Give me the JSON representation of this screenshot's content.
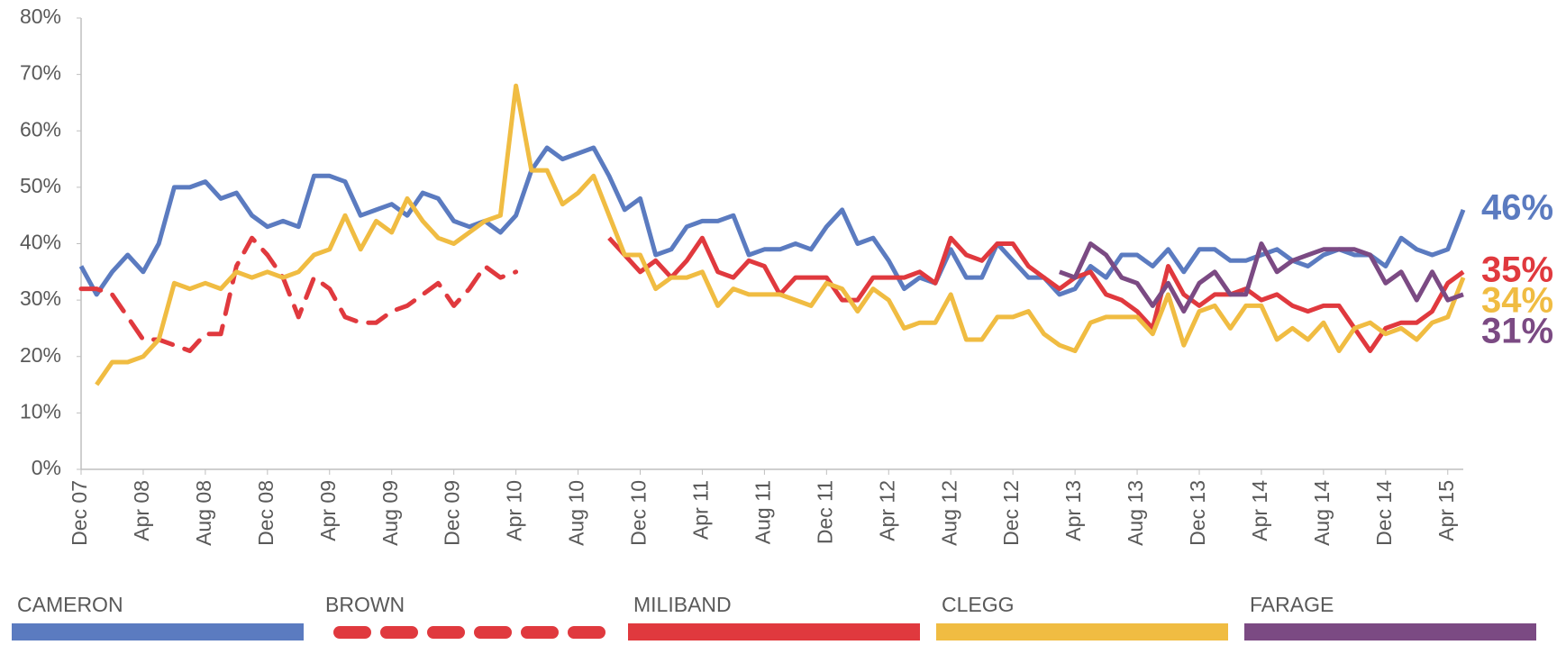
{
  "chart_data": {
    "type": "line",
    "categories": [
      "Dec 07",
      null,
      null,
      null,
      "Apr 08",
      null,
      null,
      null,
      "Aug 08",
      null,
      null,
      null,
      "Dec 08",
      null,
      null,
      null,
      "Apr 09",
      null,
      null,
      null,
      "Aug 09",
      null,
      null,
      null,
      "Dec 09",
      null,
      null,
      null,
      "Apr 10",
      null,
      null,
      null,
      "Aug 10",
      null,
      null,
      null,
      "Dec 10",
      null,
      null,
      null,
      "Apr 11",
      null,
      null,
      null,
      "Aug 11",
      null,
      null,
      null,
      "Dec 11",
      null,
      null,
      null,
      "Apr 12",
      null,
      null,
      null,
      "Aug 12",
      null,
      null,
      null,
      "Dec 12",
      null,
      null,
      null,
      "Apr 13",
      null,
      null,
      null,
      "Aug 13",
      null,
      null,
      null,
      "Dec 13",
      null,
      null,
      null,
      "Apr 14",
      null,
      null,
      null,
      "Aug 14",
      null,
      null,
      null,
      "Dec 14",
      null,
      null,
      null,
      "Apr 15",
      null
    ],
    "ylim": [
      0,
      80
    ],
    "yticks": [
      {
        "value": 0,
        "label": "0%"
      },
      {
        "value": 10,
        "label": "10%"
      },
      {
        "value": 20,
        "label": "20%"
      },
      {
        "value": 30,
        "label": "30%"
      },
      {
        "value": 40,
        "label": "40%"
      },
      {
        "value": 50,
        "label": "50%"
      },
      {
        "value": 60,
        "label": "60%"
      },
      {
        "value": 70,
        "label": "70%"
      },
      {
        "value": 80,
        "label": "80%"
      }
    ],
    "grid": false,
    "legend": "bottom",
    "series": [
      {
        "name": "CAMERON",
        "color": "#5b7bc0",
        "dashed": false,
        "end_label": "46%",
        "values": [
          36,
          31,
          35,
          38,
          35,
          40,
          50,
          50,
          51,
          48,
          49,
          45,
          43,
          44,
          43,
          52,
          52,
          51,
          45,
          46,
          47,
          45,
          49,
          48,
          44,
          43,
          44,
          42,
          45,
          53,
          57,
          55,
          56,
          57,
          52,
          46,
          48,
          38,
          39,
          43,
          44,
          44,
          45,
          38,
          39,
          39,
          40,
          39,
          43,
          46,
          40,
          41,
          37,
          32,
          34,
          33,
          39,
          34,
          34,
          40,
          37,
          34,
          34,
          31,
          32,
          36,
          34,
          38,
          38,
          36,
          39,
          35,
          39,
          39,
          37,
          37,
          38,
          39,
          37,
          36,
          38,
          39,
          38,
          38,
          36,
          41,
          39,
          38,
          39,
          46
        ]
      },
      {
        "name": "BROWN",
        "color": "#e0393e",
        "dashed": true,
        "values": [
          32,
          32,
          31,
          27,
          23,
          23,
          22,
          21,
          24,
          24,
          36,
          41,
          38,
          34,
          27,
          34,
          32,
          27,
          26,
          26,
          28,
          29,
          31,
          33,
          29,
          32,
          36,
          34,
          35,
          null,
          null,
          null,
          null,
          null,
          null,
          null,
          null,
          null,
          null,
          null,
          null,
          null,
          null,
          null,
          null,
          null,
          null,
          null,
          null,
          null,
          null,
          null,
          null,
          null,
          null,
          null,
          null,
          null,
          null,
          null,
          null,
          null,
          null,
          null,
          null,
          null,
          null,
          null,
          null,
          null,
          null,
          null,
          null,
          null,
          null,
          null,
          null,
          null,
          null,
          null,
          null,
          null,
          null,
          null,
          null,
          null,
          null,
          null,
          null,
          null
        ]
      },
      {
        "name": "MILIBAND",
        "color": "#e0393e",
        "dashed": false,
        "end_label": "35%",
        "values": [
          null,
          null,
          null,
          null,
          null,
          null,
          null,
          null,
          null,
          null,
          null,
          null,
          null,
          null,
          null,
          null,
          null,
          null,
          null,
          null,
          null,
          null,
          null,
          null,
          null,
          null,
          null,
          null,
          null,
          null,
          null,
          null,
          null,
          null,
          41,
          38,
          35,
          37,
          34,
          37,
          41,
          35,
          34,
          37,
          36,
          31,
          34,
          34,
          34,
          30,
          30,
          34,
          34,
          34,
          35,
          33,
          41,
          38,
          37,
          40,
          40,
          36,
          34,
          32,
          34,
          35,
          31,
          30,
          28,
          25,
          36,
          31,
          29,
          31,
          31,
          32,
          30,
          31,
          29,
          28,
          29,
          29,
          25,
          21,
          25,
          26,
          26,
          28,
          33,
          35
        ]
      },
      {
        "name": "CLEGG",
        "color": "#f0bc42",
        "dashed": false,
        "end_label": "34%",
        "values": [
          null,
          15,
          19,
          19,
          20,
          23,
          33,
          32,
          33,
          32,
          35,
          34,
          35,
          34,
          35,
          38,
          39,
          45,
          39,
          44,
          42,
          48,
          44,
          41,
          40,
          42,
          44,
          45,
          68,
          53,
          53,
          47,
          49,
          52,
          45,
          38,
          38,
          32,
          34,
          34,
          35,
          29,
          32,
          31,
          31,
          31,
          30,
          29,
          33,
          32,
          28,
          32,
          30,
          25,
          26,
          26,
          31,
          23,
          23,
          27,
          27,
          28,
          24,
          22,
          21,
          26,
          27,
          27,
          27,
          24,
          31,
          22,
          28,
          29,
          25,
          29,
          29,
          23,
          25,
          23,
          26,
          21,
          25,
          26,
          24,
          25,
          23,
          26,
          27,
          34
        ]
      },
      {
        "name": "FARAGE",
        "color": "#7b4a83",
        "dashed": false,
        "end_label": "31%",
        "values": [
          null,
          null,
          null,
          null,
          null,
          null,
          null,
          null,
          null,
          null,
          null,
          null,
          null,
          null,
          null,
          null,
          null,
          null,
          null,
          null,
          null,
          null,
          null,
          null,
          null,
          null,
          null,
          null,
          null,
          null,
          null,
          null,
          null,
          null,
          null,
          null,
          null,
          null,
          null,
          null,
          null,
          null,
          null,
          null,
          null,
          null,
          null,
          null,
          null,
          null,
          null,
          null,
          null,
          null,
          null,
          null,
          null,
          null,
          null,
          null,
          null,
          null,
          null,
          35,
          34,
          40,
          38,
          34,
          33,
          29,
          33,
          28,
          33,
          35,
          31,
          31,
          40,
          35,
          37,
          38,
          39,
          39,
          39,
          38,
          33,
          35,
          30,
          35,
          30,
          31
        ]
      }
    ]
  }
}
